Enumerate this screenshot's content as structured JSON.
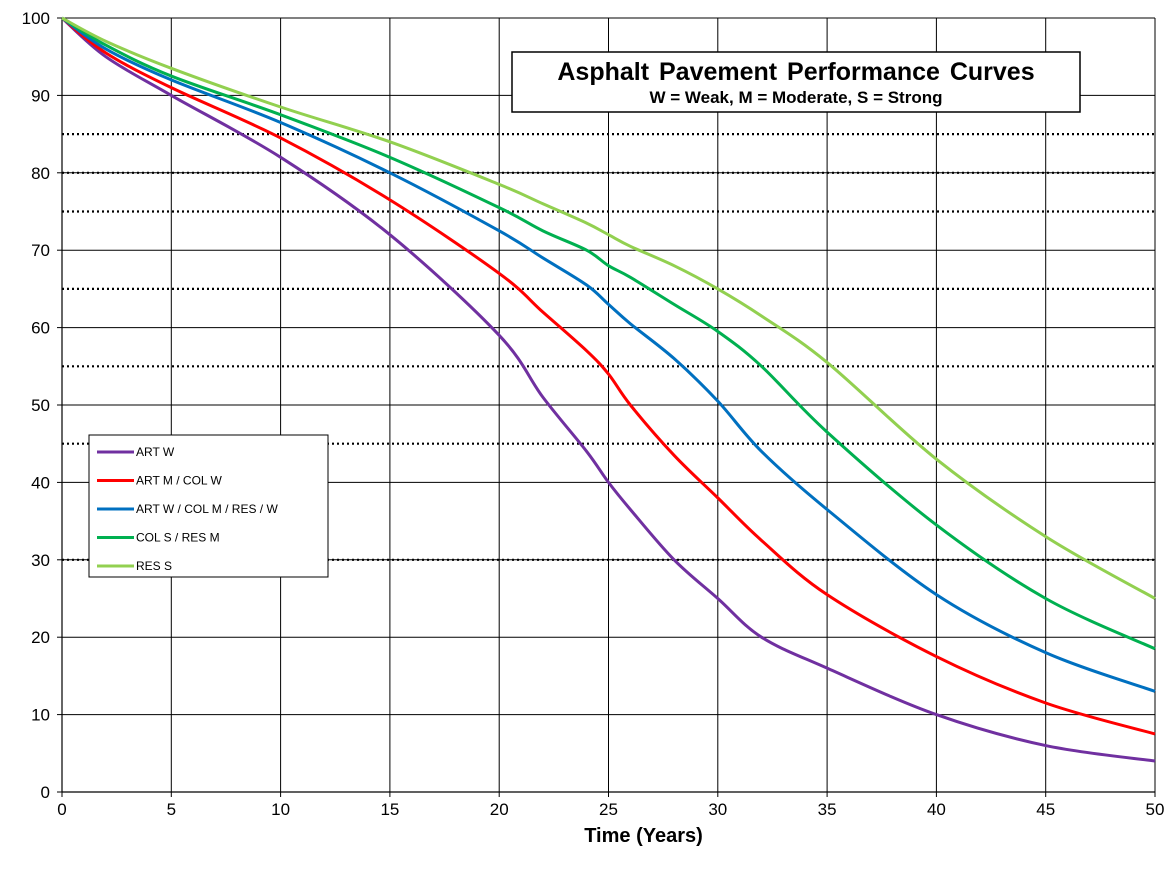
{
  "chart_data": {
    "type": "line",
    "title": "Asphalt Pavement Performance Curves",
    "subtitle": "W = Weak, M = Moderate, S = Strong",
    "xlabel": "Time (Years)",
    "ylabel": "",
    "xlim": [
      0,
      50
    ],
    "ylim": [
      0,
      100
    ],
    "x_ticks": [
      0,
      5,
      10,
      15,
      20,
      25,
      30,
      35,
      40,
      45,
      50
    ],
    "y_ticks": [
      0,
      10,
      20,
      30,
      40,
      50,
      60,
      70,
      80,
      90,
      100
    ],
    "grid": true,
    "reference_lines": [
      85,
      80,
      75,
      65,
      55,
      45,
      30
    ],
    "legend_position": "left",
    "x": [
      0,
      2,
      5,
      10,
      15,
      20,
      22,
      24,
      25,
      26,
      28,
      30,
      32,
      35,
      40,
      45,
      50
    ],
    "series": [
      {
        "name": "ART W",
        "color": "#7030A0",
        "values": [
          100,
          95,
          90,
          82,
          72,
          59,
          51,
          44,
          40,
          36.5,
          30,
          25,
          20,
          16,
          10,
          6,
          4
        ]
      },
      {
        "name": "ART M / COL W",
        "color": "#FF0000",
        "values": [
          100,
          95.5,
          91,
          84.5,
          76.5,
          67,
          62,
          57,
          54,
          50,
          43.5,
          38,
          32.5,
          25.5,
          17.5,
          11.5,
          7.5
        ]
      },
      {
        "name": "ART W / COL M / RES / W",
        "color": "#0070C0",
        "values": [
          100,
          96,
          92,
          86.5,
          80,
          72.5,
          69,
          65.5,
          63,
          60.5,
          56,
          50.5,
          44,
          36.5,
          25.5,
          18,
          13
        ]
      },
      {
        "name": "COL S / RES M",
        "color": "#00B050",
        "values": [
          100,
          96.5,
          92.5,
          87.5,
          82,
          75.5,
          72.5,
          70,
          68,
          66.5,
          63,
          59.5,
          55,
          46.5,
          34.5,
          25,
          18.5
        ]
      },
      {
        "name": "RES S",
        "color": "#92D050",
        "values": [
          100,
          97,
          93.5,
          88.5,
          84,
          78.5,
          76,
          73.5,
          72,
          70.5,
          68,
          65,
          61.5,
          55.5,
          43,
          33,
          25
        ]
      }
    ]
  }
}
